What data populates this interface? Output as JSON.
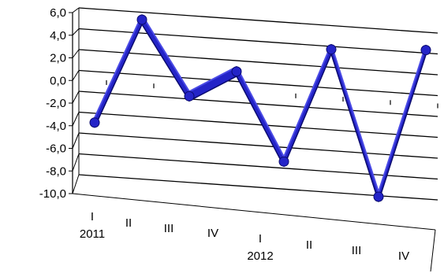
{
  "chart_data": {
    "type": "line",
    "style": "3d-ribbon",
    "title": "",
    "xlabel": "",
    "ylabel": "",
    "ylim": [
      -10,
      6
    ],
    "y_ticks": [
      "6,0",
      "4,0",
      "2,0",
      "0,0",
      "-2,0",
      "-4,0",
      "-6,0",
      "-8,0",
      "-10,0"
    ],
    "categories": [
      {
        "quarter": "I",
        "year": "2011"
      },
      {
        "quarter": "II",
        "year": ""
      },
      {
        "quarter": "III",
        "year": ""
      },
      {
        "quarter": "IV",
        "year": ""
      },
      {
        "quarter": "I",
        "year": "2012"
      },
      {
        "quarter": "II",
        "year": ""
      },
      {
        "quarter": "III",
        "year": ""
      },
      {
        "quarter": "IV",
        "year": ""
      }
    ],
    "series": [
      {
        "values": [
          -4.5,
          5.5,
          -1.7,
          0.8,
          -7.7,
          3.2,
          -10.8,
          3.4
        ],
        "color": "#1f1fc8"
      }
    ],
    "grid": true,
    "legend": "none",
    "colors": {
      "ribbon_front": "#2424c8",
      "ribbon_top": "#4a4ae6",
      "ribbon_edge": "#0a0a6e",
      "gridline": "#000000"
    }
  }
}
